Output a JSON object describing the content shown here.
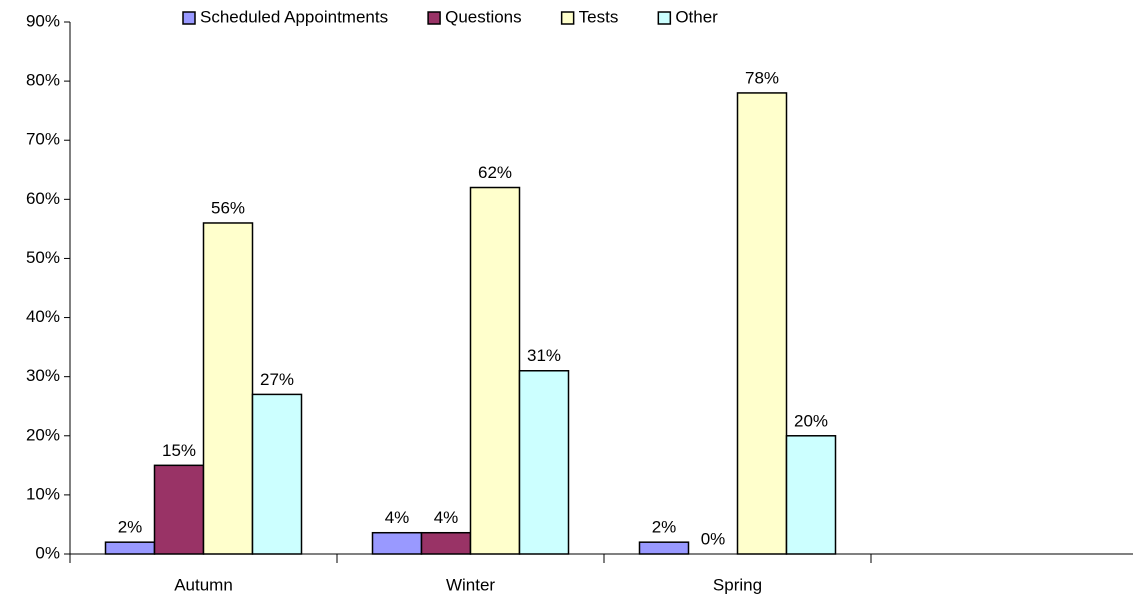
{
  "chart_data": {
    "type": "bar",
    "categories": [
      "Autumn",
      "Winter",
      "Spring",
      null
    ],
    "series": [
      {
        "name": "Scheduled Appointments",
        "color": "#9999ff",
        "values": [
          2,
          3.6,
          2,
          null
        ],
        "value_labels": [
          "2%",
          "4%",
          "2%",
          null
        ]
      },
      {
        "name": "Questions",
        "color": "#993366",
        "values": [
          15,
          3.6,
          0,
          null
        ],
        "value_labels": [
          "15%",
          "4%",
          "0%",
          null
        ]
      },
      {
        "name": "Tests",
        "color": "#ffffcc",
        "values": [
          56,
          62,
          78,
          null
        ],
        "value_labels": [
          "56%",
          "62%",
          "78%",
          null
        ]
      },
      {
        "name": "Other",
        "color": "#ccffff",
        "values": [
          27,
          31,
          20,
          null
        ],
        "value_labels": [
          "27%",
          "31%",
          "20%",
          null
        ]
      }
    ],
    "ylim": [
      0,
      90
    ],
    "yticks": [
      {
        "value": 0,
        "label": "0%"
      },
      {
        "value": 10,
        "label": "10%"
      },
      {
        "value": 20,
        "label": "20%"
      },
      {
        "value": 30,
        "label": "30%"
      },
      {
        "value": 40,
        "label": "40%"
      },
      {
        "value": 50,
        "label": "50%"
      },
      {
        "value": 60,
        "label": "60%"
      },
      {
        "value": 70,
        "label": "70%"
      },
      {
        "value": 80,
        "label": "80%"
      },
      {
        "value": 90,
        "label": "90%"
      }
    ],
    "grid": false,
    "legend": "top"
  }
}
